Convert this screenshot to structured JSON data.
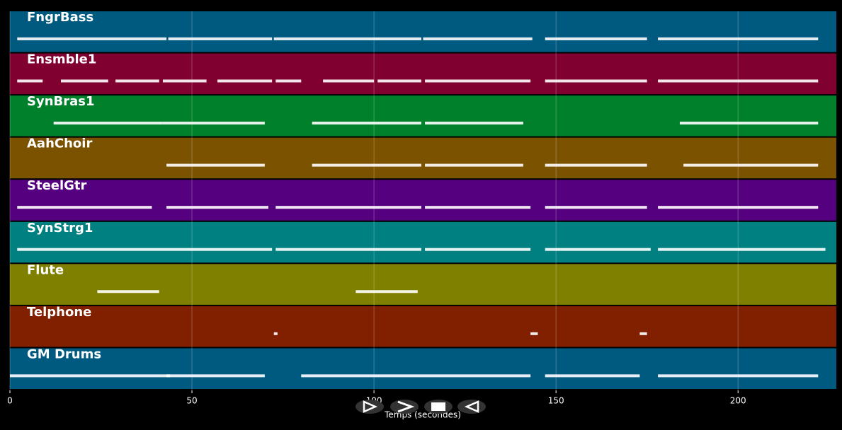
{
  "chart_data": {
    "type": "timeline",
    "x_label": "Temps (secondes)",
    "xlim": [
      0,
      227
    ],
    "xticks": [
      0,
      50,
      100,
      150,
      200
    ],
    "grid": true,
    "note_color": "#ffffff",
    "tracks": [
      {
        "name": "FngrBass",
        "color": "#005a80",
        "phrases": [
          [
            2,
            43
          ],
          [
            43.5,
            72
          ],
          [
            72.5,
            113
          ],
          [
            113.5,
            143.5
          ],
          [
            147,
            175
          ],
          [
            178,
            222
          ]
        ]
      },
      {
        "name": "Ensmble1",
        "color": "#800030",
        "phrases": [
          [
            2,
            9
          ],
          [
            14,
            27
          ],
          [
            29,
            41
          ],
          [
            42,
            54
          ],
          [
            57,
            72
          ],
          [
            73,
            80
          ],
          [
            86,
            100
          ],
          [
            101,
            113
          ],
          [
            114,
            143
          ],
          [
            147,
            175
          ],
          [
            178,
            222
          ]
        ]
      },
      {
        "name": "SynBras1",
        "color": "#00802a",
        "phrases": [
          [
            12,
            42
          ],
          [
            42,
            70
          ],
          [
            83,
            113
          ],
          [
            114,
            141
          ],
          [
            184,
            222
          ]
        ]
      },
      {
        "name": "AahChoir",
        "color": "#7a5200",
        "phrases": [
          [
            43,
            70
          ],
          [
            83,
            113
          ],
          [
            114,
            141
          ],
          [
            147,
            175
          ],
          [
            185,
            222
          ]
        ]
      },
      {
        "name": "SteelGtr",
        "color": "#55007f",
        "phrases": [
          [
            2,
            39
          ],
          [
            43,
            71
          ],
          [
            73,
            113
          ],
          [
            114,
            143
          ],
          [
            147,
            175
          ],
          [
            178,
            222
          ]
        ]
      },
      {
        "name": "SynStrg1",
        "color": "#008080",
        "phrases": [
          [
            2,
            72
          ],
          [
            73,
            113
          ],
          [
            114,
            143
          ],
          [
            147,
            176
          ],
          [
            178,
            224
          ]
        ]
      },
      {
        "name": "Flute",
        "color": "#808000",
        "phrases": [
          [
            24,
            41
          ],
          [
            95,
            112
          ]
        ]
      },
      {
        "name": "Telphone",
        "color": "#802000",
        "phrases": [
          [
            72.5,
            73.5
          ],
          [
            143,
            145
          ],
          [
            173,
            175
          ]
        ]
      },
      {
        "name": "GM Drums",
        "color": "#005a80",
        "phrases": [
          [
            0,
            44
          ],
          [
            43,
            70
          ],
          [
            80,
            143
          ],
          [
            147,
            173
          ],
          [
            178,
            222
          ]
        ]
      }
    ]
  }
}
